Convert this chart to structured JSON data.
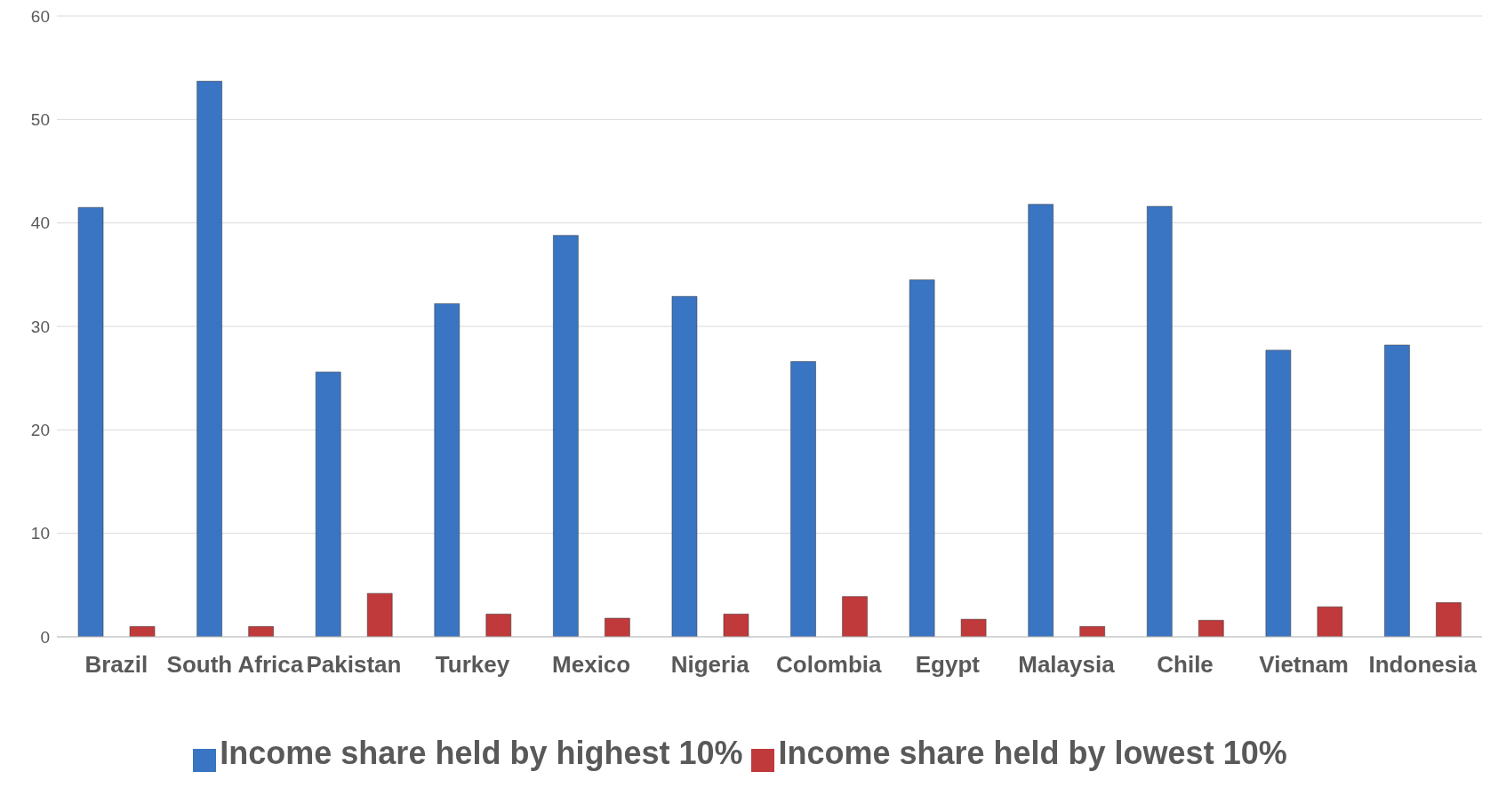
{
  "chart_data": {
    "type": "bar",
    "categories": [
      "Brazil",
      "South Africa",
      "Pakistan",
      "Turkey",
      "Mexico",
      "Nigeria",
      "Colombia",
      "Egypt",
      "Malaysia",
      "Chile",
      "Vietnam",
      "Indonesia"
    ],
    "series": [
      {
        "name": "Income share held by highest 10%",
        "color": "#3a75c4",
        "values": [
          41.5,
          53.7,
          25.6,
          32.2,
          38.8,
          32.9,
          26.6,
          34.5,
          41.8,
          41.6,
          27.7,
          28.2
        ]
      },
      {
        "name": "Income share held by lowest 10%",
        "color": "#c0393b",
        "values": [
          1.0,
          1.0,
          4.2,
          2.2,
          1.8,
          2.2,
          3.9,
          1.7,
          1.0,
          1.6,
          2.9,
          3.3
        ]
      }
    ],
    "ylim": [
      0,
      60
    ],
    "yticks": [
      0,
      10,
      20,
      30,
      40,
      50,
      60
    ],
    "grid": "y",
    "legend": "bottom"
  }
}
